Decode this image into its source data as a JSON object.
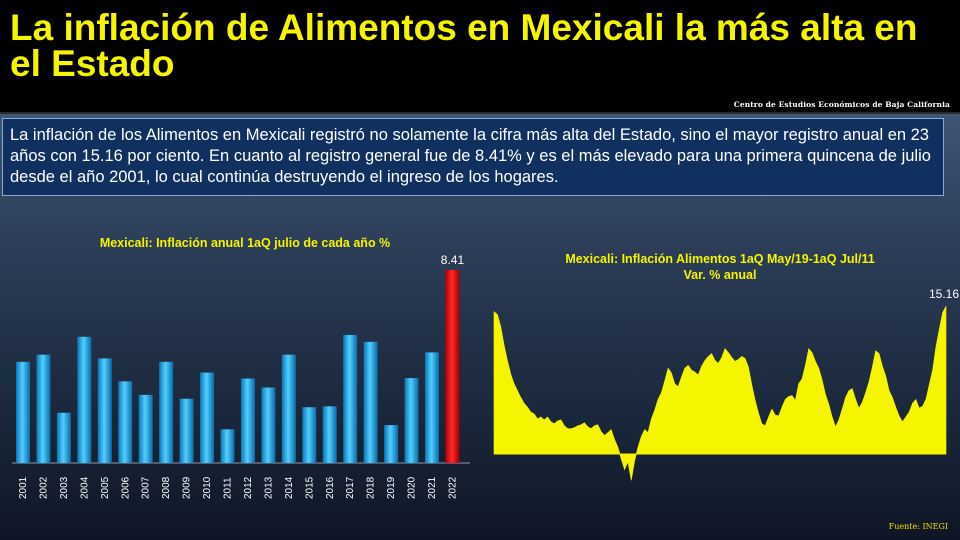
{
  "header": {
    "title": "La inflación de Alimentos en Mexicali la más alta en el Estado",
    "source": "Centro de Estudios Económicos de Baja California"
  },
  "summary": {
    "text": "La inflación de los Alimentos en Mexicali registró no solamente la cifra más alta del Estado, sino el mayor registro anual en 23 años con 15.16 por ciento. En cuanto al registro general fue de 8.41% y es el más elevado para una primera quincena de julio desde el año 2001, lo cual continúa destruyendo el ingreso de los hogares."
  },
  "footer": {
    "source": "Fuente: INEGI"
  },
  "colors": {
    "title": "#f5f500",
    "bar": "#1ea8e0",
    "highlight": "#e01010",
    "area": "#f5f500"
  },
  "chart_data": [
    {
      "type": "bar",
      "title": "Mexicali: Inflación anual 1aQ julio de cada año %",
      "categories": [
        "2001",
        "2002",
        "2003",
        "2004",
        "2005",
        "2006",
        "2007",
        "2008",
        "2009",
        "2010",
        "2011",
        "2012",
        "2013",
        "2014",
        "2015",
        "2016",
        "2017",
        "2018",
        "2019",
        "2020",
        "2021",
        "2022"
      ],
      "values": [
        4.41,
        4.72,
        2.19,
        5.5,
        4.56,
        3.56,
        2.97,
        4.41,
        2.8,
        3.94,
        1.47,
        3.68,
        3.29,
        4.72,
        2.43,
        2.47,
        5.58,
        5.28,
        1.65,
        3.7,
        4.82,
        8.41
      ],
      "highlight_index": 21,
      "label": "8.41",
      "ylim": [
        0,
        8.41
      ]
    },
    {
      "type": "area",
      "title": "Mexicali: Inflación Alimentos 1aQ May/19-1aQ Jul/11",
      "subtitle": "Var. % anual",
      "x_start": "May/19",
      "x_end": "Jul/11",
      "label": "15.16",
      "ylim": [
        -3,
        16
      ],
      "values": [
        14.6,
        14.3,
        13.1,
        11.2,
        9.6,
        8.2,
        7.2,
        6.5,
        5.8,
        5.2,
        4.8,
        4.3,
        4.1,
        3.6,
        3.8,
        3.5,
        3.8,
        3.3,
        3.1,
        3.4,
        3.5,
        2.9,
        2.6,
        2.6,
        2.7,
        2.9,
        3.0,
        3.2,
        2.8,
        2.6,
        2.9,
        3.0,
        2.3,
        1.9,
        2.2,
        2.5,
        1.5,
        0.7,
        -0.5,
        -1.6,
        -0.8,
        -2.7,
        -0.7,
        0.7,
        1.8,
        2.5,
        2.2,
        3.6,
        4.5,
        5.6,
        6.3,
        7.5,
        8.8,
        8.3,
        7.2,
        6.9,
        7.9,
        8.8,
        9.1,
        8.6,
        8.4,
        8.1,
        9.0,
        9.6,
        10.0,
        10.3,
        9.6,
        9.3,
        9.9,
        10.8,
        10.4,
        9.9,
        9.5,
        9.7,
        10.0,
        9.8,
        8.9,
        7.1,
        5.5,
        4.2,
        3.1,
        2.9,
        3.8,
        4.6,
        4.0,
        3.9,
        4.8,
        5.6,
        5.9,
        6.0,
        5.5,
        7.2,
        7.7,
        9.1,
        10.8,
        10.4,
        9.5,
        8.8,
        7.6,
        6.1,
        5.1,
        3.8,
        2.8,
        3.5,
        4.6,
        5.8,
        6.5,
        6.7,
        5.6,
        4.7,
        5.3,
        6.3,
        7.4,
        8.9,
        10.6,
        10.3,
        9.0,
        8.0,
        6.5,
        5.8,
        4.8,
        3.9,
        3.3,
        3.8,
        4.3,
        5.2,
        5.6,
        4.7,
        4.9,
        5.6,
        7.1,
        8.6,
        11.0,
        12.8,
        14.5,
        15.16
      ]
    }
  ]
}
